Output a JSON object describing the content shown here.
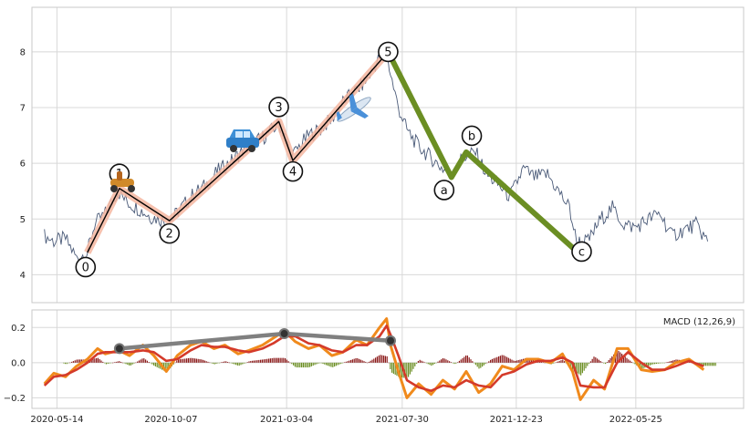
{
  "chart_data": [
    {
      "type": "line",
      "panel": "price",
      "grid": true,
      "ylim": [
        3.5,
        8.8
      ],
      "yticks": [
        "4",
        "5",
        "6",
        "7",
        "8"
      ],
      "series": [
        {
          "color": "#4a5a78",
          "x": [
            "2020-04-28",
            "2020-05-10",
            "2020-05-25",
            "2020-06-08",
            "2020-06-22",
            "2020-07-01",
            "2020-07-15",
            "2020-07-31",
            "2020-08-12",
            "2020-08-25",
            "2020-09-10",
            "2020-09-22",
            "2020-10-05",
            "2020-10-20",
            "2020-11-05",
            "2020-11-20",
            "2020-12-05",
            "2020-12-20",
            "2021-01-05",
            "2021-01-20",
            "2021-02-05",
            "2021-02-22",
            "2021-03-01",
            "2021-03-10",
            "2021-03-20",
            "2021-04-01",
            "2021-04-15",
            "2021-05-01",
            "2021-05-15",
            "2021-06-01",
            "2021-06-15",
            "2021-07-01",
            "2021-07-10",
            "2021-07-15",
            "2021-07-25",
            "2021-08-05",
            "2021-08-20",
            "2021-09-05",
            "2021-09-20",
            "2021-10-01",
            "2021-10-15",
            "2021-11-01",
            "2021-11-15",
            "2021-12-01",
            "2021-12-15",
            "2022-01-01",
            "2022-01-15",
            "2022-02-01",
            "2022-02-15",
            "2022-03-01",
            "2022-03-10",
            "2022-03-25",
            "2022-04-10",
            "2022-04-25",
            "2022-05-10",
            "2022-05-25",
            "2022-06-10",
            "2022-06-25",
            "2022-07-10",
            "2022-07-25",
            "2022-08-10",
            "2022-08-25"
          ],
          "values": [
            4.7,
            4.6,
            4.65,
            4.3,
            4.4,
            4.9,
            5.1,
            5.5,
            5.3,
            5.2,
            5.05,
            5.0,
            4.95,
            5.2,
            5.45,
            5.6,
            5.85,
            6.0,
            6.2,
            6.35,
            6.5,
            6.7,
            6.55,
            6.1,
            6.3,
            6.5,
            6.6,
            6.8,
            7.1,
            7.3,
            7.5,
            7.9,
            8.0,
            7.6,
            7.0,
            6.6,
            6.3,
            6.1,
            5.9,
            5.8,
            6.1,
            6.2,
            5.8,
            5.6,
            5.4,
            5.9,
            5.75,
            5.8,
            5.5,
            5.2,
            4.6,
            4.6,
            5.0,
            5.2,
            4.9,
            4.85,
            5.0,
            5.1,
            4.7,
            4.8,
            4.9,
            4.6
          ]
        }
      ],
      "waves": [
        {
          "label": "0",
          "date": "2020-06-22",
          "value": 4.4
        },
        {
          "label": "1",
          "date": "2020-08-02",
          "value": 5.55
        },
        {
          "label": "2",
          "date": "2020-10-05",
          "value": 4.97
        },
        {
          "label": "3",
          "date": "2021-02-22",
          "value": 6.75
        },
        {
          "label": "4",
          "date": "2021-03-12",
          "value": 6.05
        },
        {
          "label": "5",
          "date": "2021-07-12",
          "value": 8.0
        },
        {
          "label": "a",
          "date": "2021-10-01",
          "value": 5.75
        },
        {
          "label": "b",
          "date": "2021-10-20",
          "value": 6.2
        },
        {
          "label": "c",
          "date": "2022-03-12",
          "value": 4.4
        }
      ],
      "icons": [
        "scooter-icon",
        "car-icon",
        "airplane-icon"
      ]
    },
    {
      "type": "line",
      "panel": "macd",
      "grid": true,
      "ylim": [
        -0.26,
        0.3
      ],
      "yticks": [
        "−0.2",
        "0.0",
        "0.2"
      ],
      "legend": "MACD (12,26,9)",
      "xticks": [
        "2020-05-14",
        "2020-10-07",
        "2021-03-04",
        "2021-07-30",
        "2021-12-23",
        "2022-05-25"
      ],
      "x": [
        "2020-04-28",
        "2020-05-10",
        "2020-05-25",
        "2020-06-08",
        "2020-06-22",
        "2020-07-05",
        "2020-07-15",
        "2020-08-01",
        "2020-08-15",
        "2020-09-01",
        "2020-09-15",
        "2020-10-01",
        "2020-10-15",
        "2020-11-01",
        "2020-11-15",
        "2020-12-01",
        "2020-12-15",
        "2021-01-01",
        "2021-01-15",
        "2021-02-01",
        "2021-02-15",
        "2021-03-01",
        "2021-03-15",
        "2021-04-01",
        "2021-04-15",
        "2021-05-01",
        "2021-05-15",
        "2021-06-01",
        "2021-06-15",
        "2021-07-01",
        "2021-07-10",
        "2021-07-15",
        "2021-07-25",
        "2021-08-05",
        "2021-08-20",
        "2021-09-05",
        "2021-09-20",
        "2021-10-05",
        "2021-10-20",
        "2021-11-05",
        "2021-11-20",
        "2021-12-05",
        "2021-12-20",
        "2022-01-05",
        "2022-01-20",
        "2022-02-05",
        "2022-02-20",
        "2022-03-05",
        "2022-03-15",
        "2022-04-01",
        "2022-04-15",
        "2022-05-01",
        "2022-05-15",
        "2022-06-01",
        "2022-06-15",
        "2022-07-01",
        "2022-07-15",
        "2022-08-01",
        "2022-08-20"
      ],
      "macd": [
        -0.12,
        -0.06,
        -0.08,
        -0.02,
        0.02,
        0.08,
        0.05,
        0.07,
        0.04,
        0.1,
        0.04,
        -0.05,
        0.04,
        0.1,
        0.12,
        0.08,
        0.1,
        0.05,
        0.07,
        0.1,
        0.14,
        0.18,
        0.12,
        0.08,
        0.1,
        0.04,
        0.06,
        0.13,
        0.1,
        0.2,
        0.25,
        0.1,
        -0.05,
        -0.2,
        -0.12,
        -0.18,
        -0.1,
        -0.15,
        -0.05,
        -0.17,
        -0.12,
        -0.02,
        -0.04,
        0.02,
        0.02,
        0.0,
        0.05,
        -0.05,
        -0.21,
        -0.1,
        -0.15,
        0.08,
        0.08,
        -0.04,
        -0.05,
        -0.04,
        0.0,
        0.02,
        -0.04
      ],
      "signal": [
        -0.13,
        -0.08,
        -0.07,
        -0.04,
        0.0,
        0.05,
        0.06,
        0.06,
        0.06,
        0.07,
        0.06,
        0.01,
        0.02,
        0.07,
        0.1,
        0.09,
        0.09,
        0.07,
        0.06,
        0.08,
        0.11,
        0.15,
        0.15,
        0.11,
        0.1,
        0.07,
        0.06,
        0.1,
        0.1,
        0.15,
        0.21,
        0.16,
        0.04,
        -0.1,
        -0.14,
        -0.16,
        -0.13,
        -0.14,
        -0.1,
        -0.13,
        -0.14,
        -0.07,
        -0.05,
        -0.01,
        0.01,
        0.01,
        0.03,
        0.0,
        -0.13,
        -0.14,
        -0.14,
        0.0,
        0.06,
        0.0,
        -0.04,
        -0.04,
        -0.02,
        0.01,
        -0.02
      ],
      "trendline": [
        {
          "date": "2020-08-02",
          "value": 0.08
        },
        {
          "date": "2021-03-01",
          "value": 0.165
        },
        {
          "date": "2021-07-15",
          "value": 0.125
        }
      ]
    }
  ],
  "colors": {
    "price": "#4a5a78",
    "wave_fill": "#f4b6a0",
    "wave_line": "#000000",
    "corrective": "#6b8e23",
    "macd": "#f08a1c",
    "signal": "#d43a2a",
    "hist_up": "#8b1a1a",
    "hist_down": "#6b8e23",
    "trend": "#808080",
    "grid": "#d8d8d8"
  }
}
